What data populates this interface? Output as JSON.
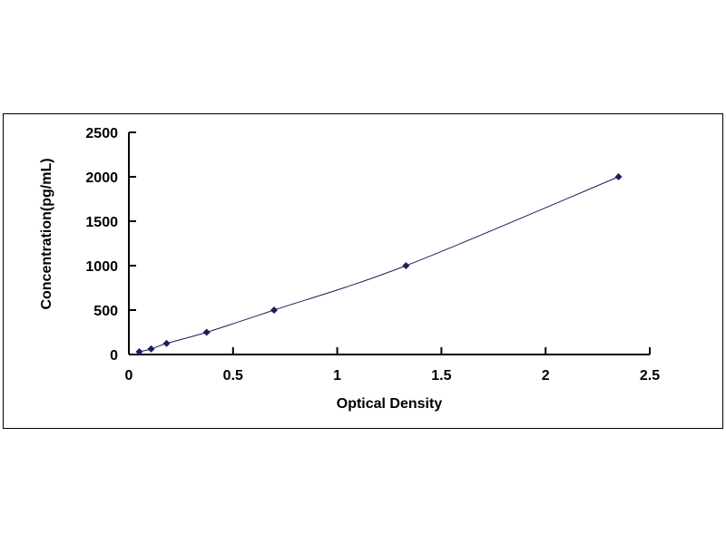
{
  "chart_data": {
    "type": "scatter",
    "title": "",
    "xlabel": "Optical Density",
    "ylabel": "Concentration(pg/mL)",
    "xlim": [
      0,
      2.5
    ],
    "ylim": [
      0,
      2500
    ],
    "xticks": [
      "0",
      "0.5",
      "1",
      "1.5",
      "2",
      "2.5"
    ],
    "yticks": [
      "0",
      "500",
      "1000",
      "1500",
      "2000",
      "2500"
    ],
    "grid": false,
    "legend": "none",
    "marker": "diamond",
    "smooth_line": true,
    "color": "#1a1f5c",
    "series": [
      {
        "x": [
          0.05,
          0.107,
          0.181,
          0.373,
          0.697,
          1.33,
          2.35
        ],
        "y": [
          31.25,
          62.5,
          125,
          250,
          500,
          1000,
          2000
        ]
      }
    ]
  }
}
